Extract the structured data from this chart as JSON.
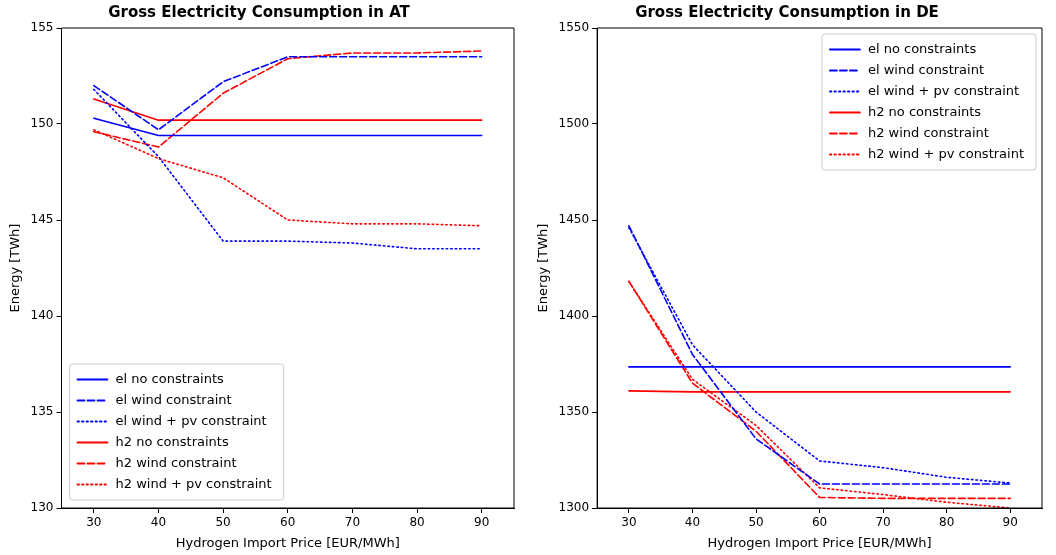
{
  "chart_data": [
    {
      "type": "line",
      "title": "Gross Electricity Consumption in AT",
      "xlabel": "Hydrogen Import Price [EUR/MWh]",
      "ylabel": "Energy [TWh]",
      "x": [
        30,
        40,
        50,
        60,
        70,
        80,
        90
      ],
      "xlim": [
        25,
        95
      ],
      "xticks": [
        30,
        40,
        50,
        60,
        70,
        80,
        90
      ],
      "ylim": [
        130,
        155
      ],
      "yticks": [
        130,
        135,
        140,
        145,
        150,
        155
      ],
      "grid": false,
      "legend": "bottom left",
      "marker": "none",
      "series": [
        {
          "name": "el no constraints",
          "color": "#0000ff",
          "line_style": "solid",
          "values": [
            150.3,
            149.4,
            149.4,
            149.4,
            149.4,
            149.4,
            149.4
          ]
        },
        {
          "name": "el wind constraint",
          "color": "#0000ff",
          "line_style": "dashed",
          "values": [
            152.0,
            149.7,
            152.2,
            153.5,
            153.5,
            153.5,
            153.5
          ]
        },
        {
          "name": "el wind + pv constraint",
          "color": "#0000ff",
          "line_style": "dotted",
          "values": [
            151.8,
            148.3,
            143.9,
            143.9,
            143.8,
            143.5,
            143.5
          ]
        },
        {
          "name": "h2 no constraints",
          "color": "#ff0000",
          "line_style": "solid",
          "values": [
            151.3,
            150.2,
            150.2,
            150.2,
            150.2,
            150.2,
            150.2
          ]
        },
        {
          "name": "h2 wind constraint",
          "color": "#ff0000",
          "line_style": "dashed",
          "values": [
            149.6,
            148.8,
            151.6,
            153.4,
            153.7,
            153.7,
            153.8
          ]
        },
        {
          "name": "h2 wind + pv constraint",
          "color": "#ff0000",
          "line_style": "dotted",
          "values": [
            149.7,
            148.2,
            147.2,
            145.0,
            144.8,
            144.8,
            144.7
          ]
        }
      ]
    },
    {
      "type": "line",
      "title": "Gross Electricity Consumption in DE",
      "xlabel": "Hydrogen Import Price [EUR/MWh]",
      "ylabel": "Energy [TWh]",
      "x": [
        30,
        40,
        50,
        60,
        70,
        80,
        90
      ],
      "xlim": [
        25,
        95
      ],
      "xticks": [
        30,
        40,
        50,
        60,
        70,
        80,
        90
      ],
      "ylim": [
        1300,
        1550
      ],
      "yticks": [
        1300,
        1350,
        1400,
        1450,
        1500,
        1550
      ],
      "grid": false,
      "legend": "top right",
      "marker": "none",
      "series": [
        {
          "name": "el no constraints",
          "color": "#0000ff",
          "line_style": "solid",
          "values": [
            1373.5,
            1373.5,
            1373.5,
            1373.5,
            1373.5,
            1373.5,
            1373.5
          ]
        },
        {
          "name": "el wind constraint",
          "color": "#0000ff",
          "line_style": "dashed",
          "values": [
            1447,
            1380,
            1336,
            1312.5,
            1312.5,
            1312.5,
            1312.5
          ]
        },
        {
          "name": "el wind + pv constraint",
          "color": "#0000ff",
          "line_style": "dotted",
          "values": [
            1446,
            1385,
            1350,
            1324.5,
            1321,
            1316,
            1313
          ]
        },
        {
          "name": "h2 no constraints",
          "color": "#ff0000",
          "line_style": "solid",
          "values": [
            1361,
            1360.5,
            1360.5,
            1360.5,
            1360.5,
            1360.5,
            1360.5
          ]
        },
        {
          "name": "h2 wind constraint",
          "color": "#ff0000",
          "line_style": "dashed",
          "values": [
            1418,
            1365,
            1340,
            1305.5,
            1305,
            1305,
            1305
          ]
        },
        {
          "name": "h2 wind + pv constraint",
          "color": "#ff0000",
          "line_style": "dotted",
          "values": [
            1418,
            1367,
            1343,
            1310.5,
            1307,
            1303,
            1300
          ]
        }
      ]
    }
  ]
}
